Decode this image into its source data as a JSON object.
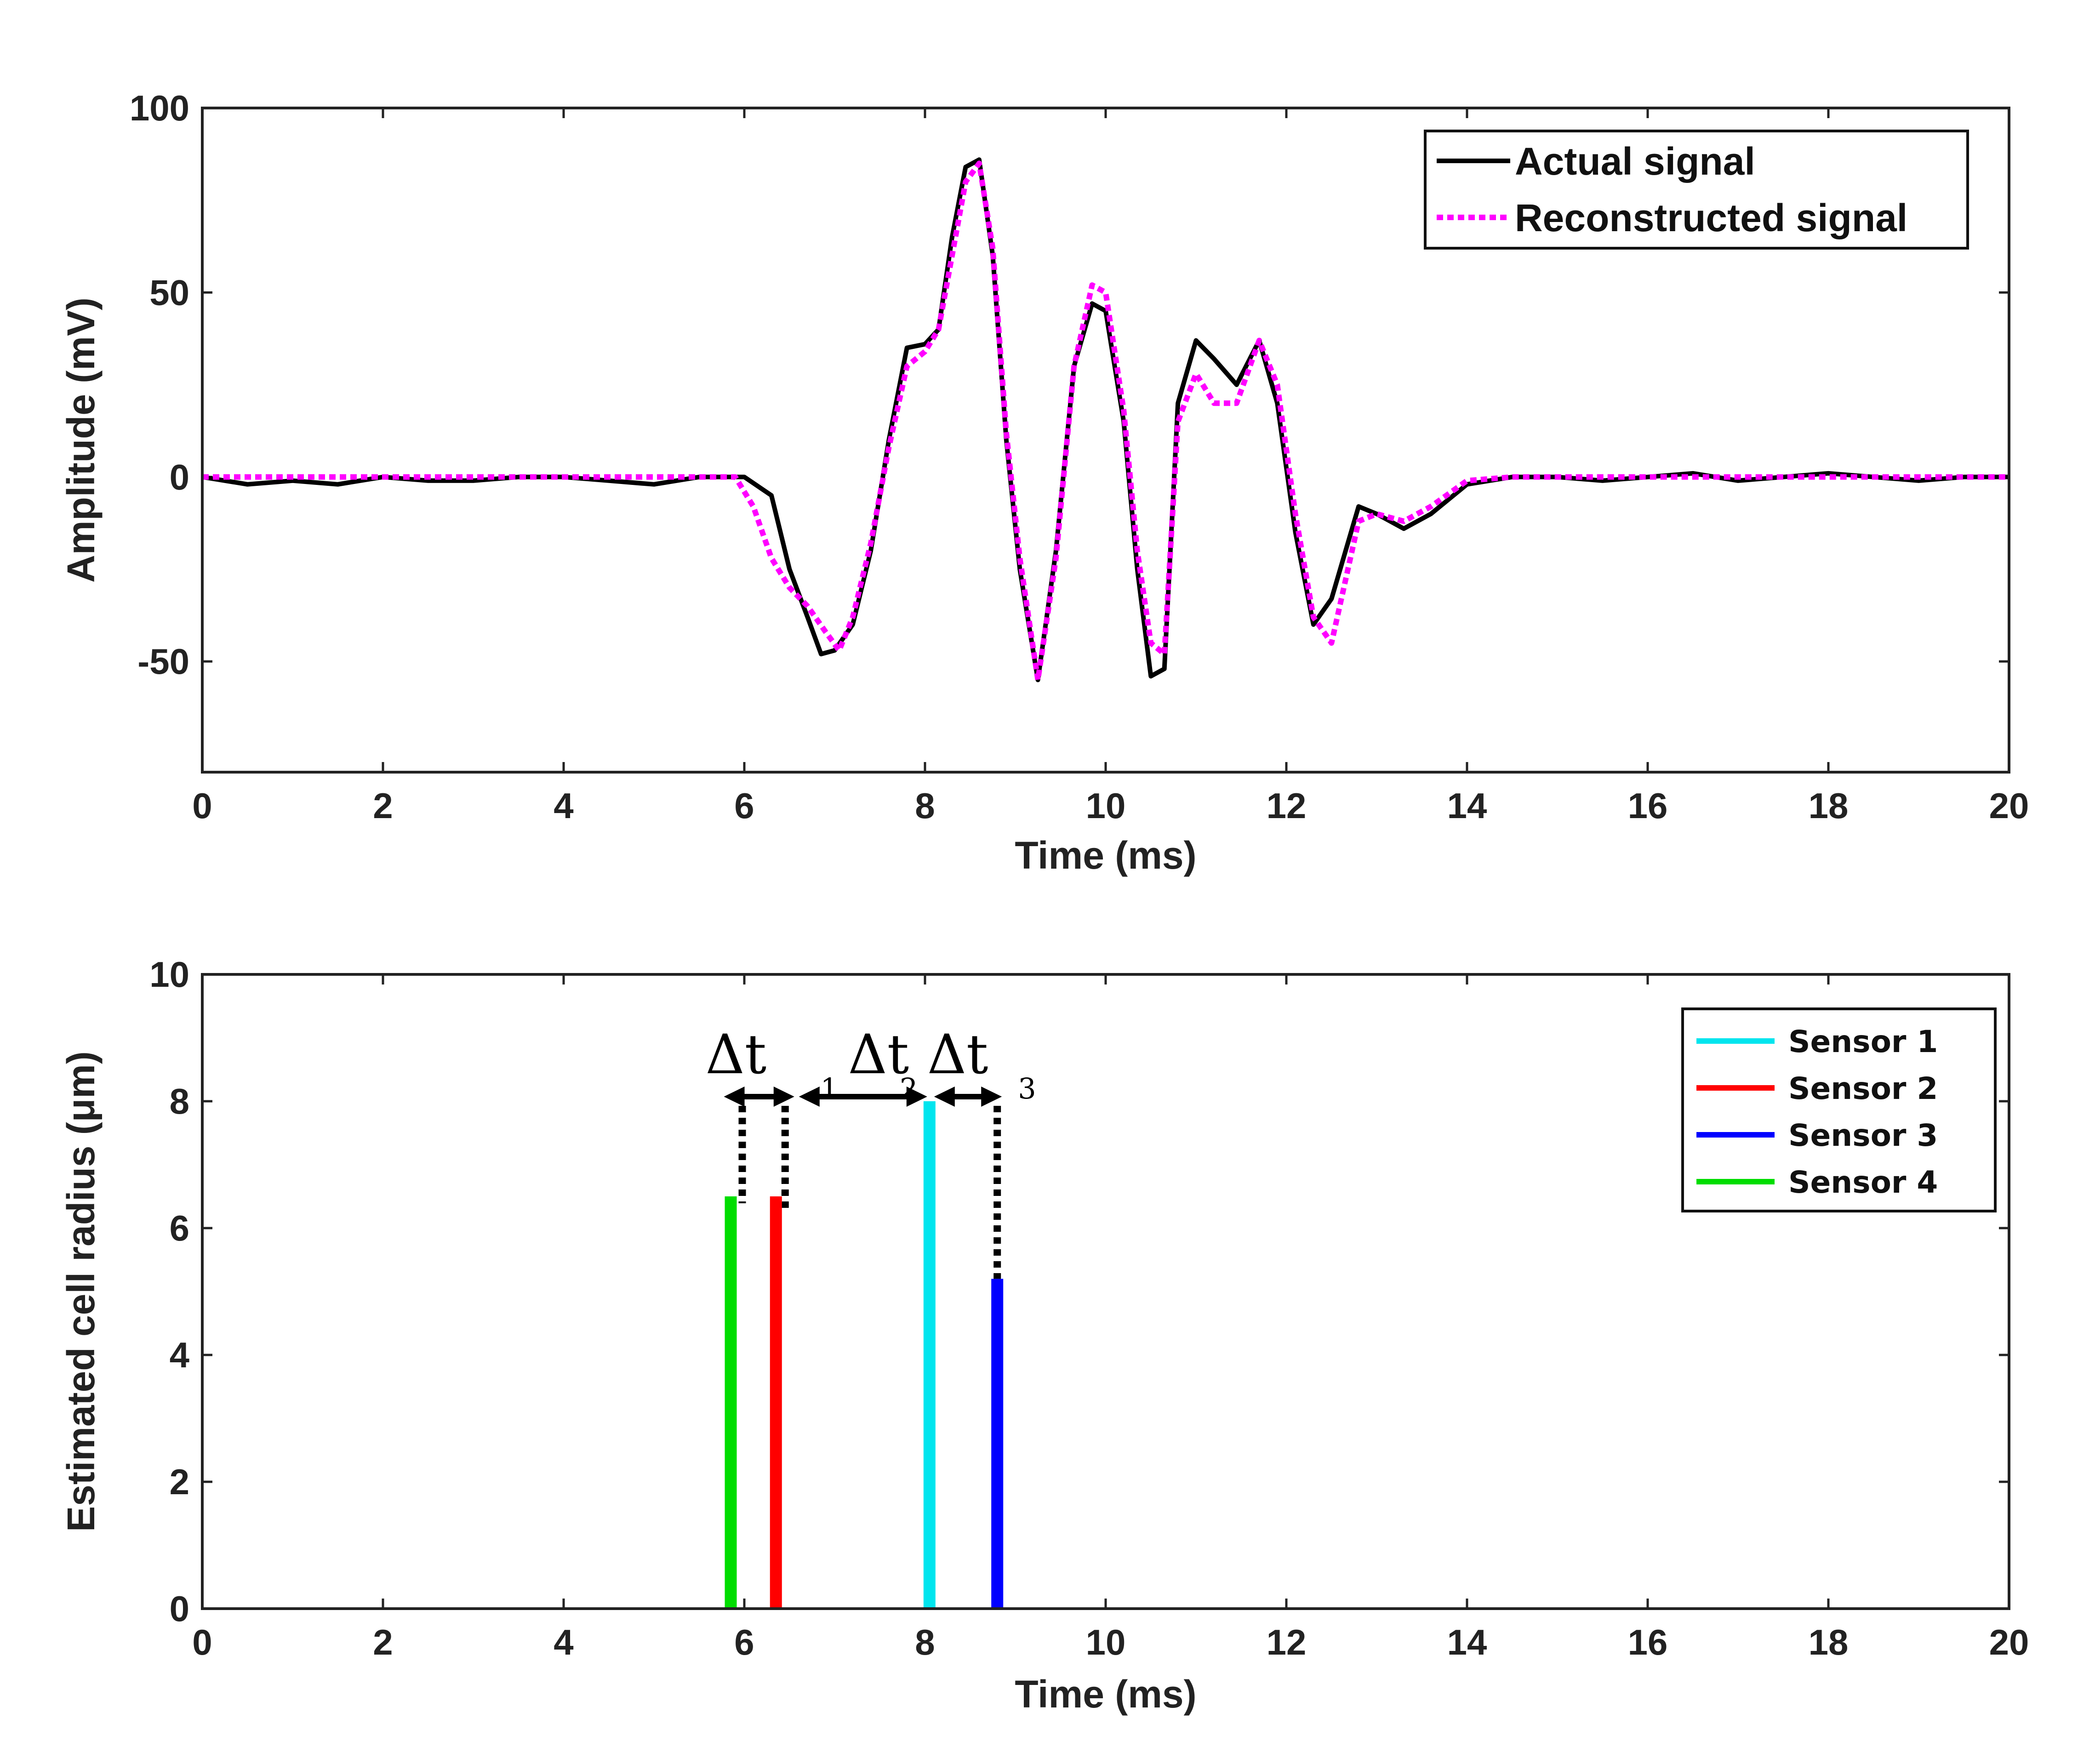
{
  "chart_data": [
    {
      "type": "line",
      "title": "",
      "xlabel": "Time (ms)",
      "ylabel": "Amplitude (mV)",
      "xlim": [
        0,
        20
      ],
      "ylim": [
        -80,
        100
      ],
      "xticks": [
        0,
        2,
        4,
        6,
        8,
        10,
        12,
        14,
        16,
        18,
        20
      ],
      "yticks": [
        -50,
        0,
        50,
        100
      ],
      "grid": false,
      "legend_position": "top-right",
      "series": [
        {
          "name": "Actual signal",
          "color": "#000000",
          "style": "solid",
          "x": [
            0,
            0.5,
            1.0,
            1.5,
            2.0,
            2.5,
            3.0,
            3.5,
            4.0,
            4.5,
            5.0,
            5.5,
            6.0,
            6.3,
            6.5,
            6.7,
            6.85,
            7.0,
            7.2,
            7.4,
            7.6,
            7.8,
            8.0,
            8.15,
            8.3,
            8.45,
            8.6,
            8.75,
            8.9,
            9.05,
            9.25,
            9.45,
            9.65,
            9.85,
            10.0,
            10.2,
            10.35,
            10.5,
            10.65,
            10.8,
            11.0,
            11.2,
            11.45,
            11.7,
            11.9,
            12.1,
            12.3,
            12.5,
            12.8,
            13.0,
            13.3,
            13.6,
            14.0,
            14.5,
            15.0,
            15.5,
            16.0,
            16.5,
            17.0,
            17.5,
            18.0,
            18.5,
            19.0,
            19.5,
            20.0
          ],
          "y": [
            0,
            -2,
            -1,
            -2,
            0,
            -1,
            -1,
            0,
            0,
            -1,
            -2,
            0,
            0,
            -5,
            -25,
            -38,
            -48,
            -47,
            -40,
            -20,
            10,
            35,
            36,
            40,
            65,
            84,
            86,
            60,
            10,
            -25,
            -55,
            -20,
            30,
            47,
            45,
            15,
            -25,
            -54,
            -52,
            20,
            37,
            32,
            25,
            37,
            20,
            -15,
            -40,
            -33,
            -8,
            -10,
            -14,
            -10,
            -2,
            0,
            0,
            -1,
            0,
            1,
            -1,
            0,
            1,
            0,
            -1,
            0,
            0
          ]
        },
        {
          "name": "Reconstructed signal",
          "color": "#ff00ff",
          "style": "dashed",
          "x": [
            0,
            0.5,
            1.0,
            1.5,
            2.0,
            2.5,
            3.0,
            3.5,
            4.0,
            4.5,
            5.0,
            5.5,
            5.9,
            6.1,
            6.3,
            6.5,
            6.7,
            6.9,
            7.05,
            7.2,
            7.4,
            7.6,
            7.8,
            8.0,
            8.15,
            8.3,
            8.45,
            8.6,
            8.75,
            8.9,
            9.05,
            9.25,
            9.45,
            9.65,
            9.85,
            10.0,
            10.2,
            10.35,
            10.5,
            10.65,
            10.8,
            11.0,
            11.2,
            11.45,
            11.7,
            11.9,
            12.1,
            12.3,
            12.5,
            12.8,
            13.0,
            13.3,
            13.6,
            14.0,
            14.5,
            15.0,
            15.5,
            16.0,
            16.5,
            17.0,
            17.5,
            18.0,
            18.5,
            19.0,
            19.5,
            20.0
          ],
          "y": [
            0,
            0,
            0,
            0,
            0,
            0,
            0,
            0,
            0,
            0,
            0,
            0,
            0,
            -8,
            -22,
            -30,
            -35,
            -42,
            -47,
            -38,
            -18,
            8,
            30,
            34,
            40,
            60,
            80,
            85,
            62,
            12,
            -22,
            -55,
            -22,
            30,
            52,
            50,
            18,
            -20,
            -45,
            -48,
            15,
            28,
            20,
            20,
            37,
            25,
            -10,
            -38,
            -45,
            -12,
            -10,
            -12,
            -8,
            -1,
            0,
            0,
            0,
            0,
            0,
            0,
            0,
            0,
            0,
            0,
            0,
            0
          ]
        }
      ]
    },
    {
      "type": "bar",
      "title": "",
      "xlabel": "Time (ms)",
      "ylabel": "Estimated cell radius (μm)",
      "xlim": [
        0,
        20
      ],
      "ylim": [
        0,
        10
      ],
      "xticks": [
        0,
        2,
        4,
        6,
        8,
        10,
        12,
        14,
        16,
        18,
        20
      ],
      "yticks": [
        0,
        2,
        4,
        6,
        8,
        10
      ],
      "grid": false,
      "legend_position": "top-right",
      "series": [
        {
          "name": "Sensor 1",
          "color": "#00e5ee",
          "x": 8.05,
          "value": 8.0
        },
        {
          "name": "Sensor 2",
          "color": "#ff0000",
          "x": 6.35,
          "value": 6.5
        },
        {
          "name": "Sensor 3",
          "color": "#0000ff",
          "x": 8.8,
          "value": 5.2
        },
        {
          "name": "Sensor 4",
          "color": "#00dd00",
          "x": 5.85,
          "value": 6.5
        }
      ],
      "annotations": [
        {
          "text": "Δt",
          "subscript": "1"
        },
        {
          "text": "Δt",
          "subscript": "2"
        },
        {
          "text": "Δt",
          "subscript": "3"
        }
      ]
    }
  ]
}
